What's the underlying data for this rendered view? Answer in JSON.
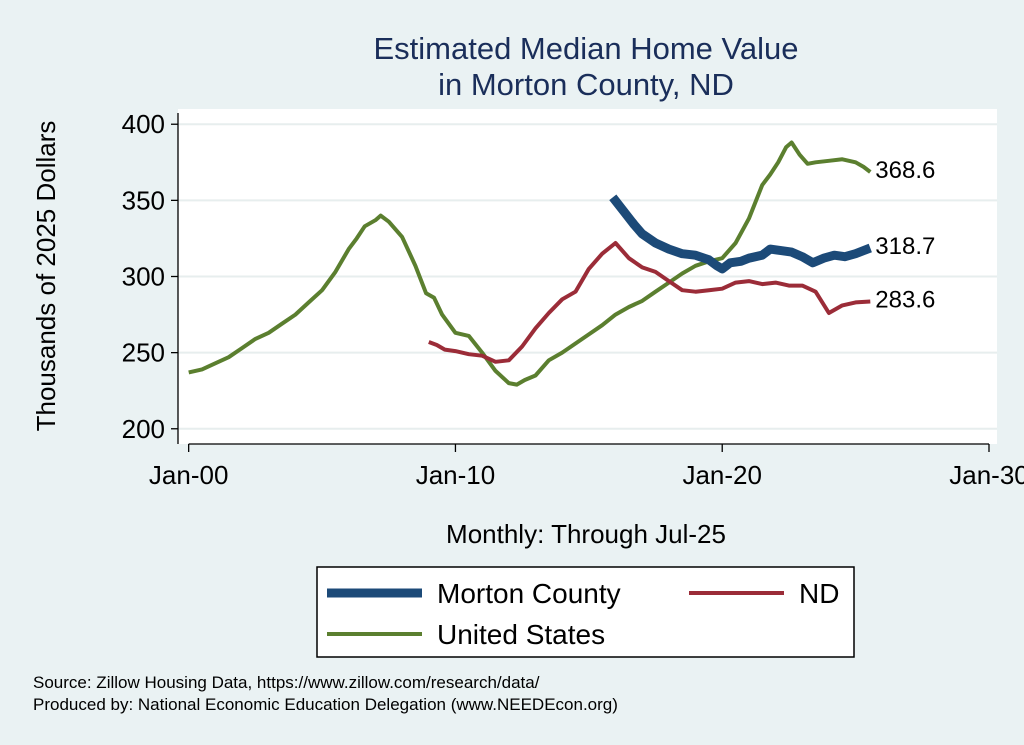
{
  "chart_data": {
    "type": "line",
    "title": [
      "Estimated Median Home Value",
      "in Morton County, ND"
    ],
    "ylabel": "Thousands of 2025 Dollars",
    "xlabel": "Monthly: Through Jul-25",
    "ylim": [
      190,
      410
    ],
    "yticks": [
      200,
      250,
      300,
      350,
      400
    ],
    "xlim": [
      1999.6,
      2030.3
    ],
    "xticks": [
      {
        "value": 2000,
        "label": "Jan-00"
      },
      {
        "value": 2010,
        "label": "Jan-10"
      },
      {
        "value": 2020,
        "label": "Jan-20"
      },
      {
        "value": 2030,
        "label": "Jan-30"
      }
    ],
    "grid": true,
    "series": [
      {
        "name": "United States",
        "color": "#5b7f2f",
        "width": 4,
        "end_label": "368.6",
        "points": [
          [
            2000.0,
            237
          ],
          [
            2000.5,
            239
          ],
          [
            2001.0,
            243
          ],
          [
            2001.5,
            247
          ],
          [
            2002.0,
            253
          ],
          [
            2002.5,
            259
          ],
          [
            2003.0,
            263
          ],
          [
            2003.5,
            269
          ],
          [
            2004.0,
            275
          ],
          [
            2004.5,
            283
          ],
          [
            2005.0,
            291
          ],
          [
            2005.5,
            303
          ],
          [
            2006.0,
            318
          ],
          [
            2006.3,
            325
          ],
          [
            2006.6,
            333
          ],
          [
            2007.0,
            337
          ],
          [
            2007.2,
            340
          ],
          [
            2007.5,
            336
          ],
          [
            2008.0,
            326
          ],
          [
            2008.5,
            307
          ],
          [
            2008.9,
            289
          ],
          [
            2009.2,
            286
          ],
          [
            2009.5,
            275
          ],
          [
            2010.0,
            263
          ],
          [
            2010.5,
            261
          ],
          [
            2011.0,
            250
          ],
          [
            2011.5,
            238
          ],
          [
            2012.0,
            230
          ],
          [
            2012.3,
            229
          ],
          [
            2012.6,
            232
          ],
          [
            2013.0,
            235
          ],
          [
            2013.5,
            245
          ],
          [
            2014.0,
            250
          ],
          [
            2014.5,
            256
          ],
          [
            2015.0,
            262
          ],
          [
            2015.5,
            268
          ],
          [
            2016.0,
            275
          ],
          [
            2016.5,
            280
          ],
          [
            2017.0,
            284
          ],
          [
            2017.5,
            290
          ],
          [
            2018.0,
            296
          ],
          [
            2018.5,
            302
          ],
          [
            2019.0,
            307
          ],
          [
            2019.5,
            310
          ],
          [
            2020.0,
            312
          ],
          [
            2020.5,
            322
          ],
          [
            2021.0,
            338
          ],
          [
            2021.5,
            360
          ],
          [
            2021.8,
            367
          ],
          [
            2022.1,
            375
          ],
          [
            2022.4,
            385
          ],
          [
            2022.6,
            388
          ],
          [
            2022.9,
            380
          ],
          [
            2023.2,
            374
          ],
          [
            2023.5,
            375
          ],
          [
            2024.0,
            376
          ],
          [
            2024.5,
            377
          ],
          [
            2025.0,
            375
          ],
          [
            2025.3,
            372
          ],
          [
            2025.55,
            368.6
          ]
        ]
      },
      {
        "name": "ND",
        "color": "#9b2c38",
        "width": 4,
        "end_label": "283.6",
        "points": [
          [
            2009.0,
            257
          ],
          [
            2009.3,
            255
          ],
          [
            2009.6,
            252
          ],
          [
            2010.0,
            251
          ],
          [
            2010.5,
            249
          ],
          [
            2011.0,
            248
          ],
          [
            2011.5,
            244
          ],
          [
            2012.0,
            245
          ],
          [
            2012.5,
            254
          ],
          [
            2013.0,
            266
          ],
          [
            2013.5,
            276
          ],
          [
            2014.0,
            285
          ],
          [
            2014.5,
            290
          ],
          [
            2015.0,
            305
          ],
          [
            2015.5,
            315
          ],
          [
            2016.0,
            322
          ],
          [
            2016.5,
            312
          ],
          [
            2017.0,
            306
          ],
          [
            2017.5,
            303
          ],
          [
            2018.0,
            297
          ],
          [
            2018.5,
            291
          ],
          [
            2019.0,
            290
          ],
          [
            2019.5,
            291
          ],
          [
            2020.0,
            292
          ],
          [
            2020.5,
            296
          ],
          [
            2021.0,
            297
          ],
          [
            2021.5,
            295
          ],
          [
            2022.0,
            296
          ],
          [
            2022.5,
            294
          ],
          [
            2023.0,
            294
          ],
          [
            2023.5,
            290
          ],
          [
            2024.0,
            276
          ],
          [
            2024.5,
            281
          ],
          [
            2025.0,
            283
          ],
          [
            2025.55,
            283.6
          ]
        ]
      },
      {
        "name": "Morton County",
        "color": "#1c4a78",
        "width": 9,
        "end_label": "318.7",
        "points": [
          [
            2015.9,
            352
          ],
          [
            2016.3,
            343
          ],
          [
            2016.7,
            334
          ],
          [
            2017.0,
            328
          ],
          [
            2017.5,
            322
          ],
          [
            2018.0,
            318
          ],
          [
            2018.5,
            315
          ],
          [
            2019.0,
            314
          ],
          [
            2019.5,
            311
          ],
          [
            2019.8,
            307
          ],
          [
            2020.0,
            305
          ],
          [
            2020.3,
            309
          ],
          [
            2020.7,
            310
          ],
          [
            2021.0,
            312
          ],
          [
            2021.5,
            314
          ],
          [
            2021.8,
            318
          ],
          [
            2022.2,
            317
          ],
          [
            2022.6,
            316
          ],
          [
            2023.0,
            313
          ],
          [
            2023.4,
            309
          ],
          [
            2023.8,
            312
          ],
          [
            2024.2,
            314
          ],
          [
            2024.6,
            313
          ],
          [
            2025.0,
            315
          ],
          [
            2025.55,
            318.7
          ]
        ]
      }
    ],
    "legend": {
      "placement": "bottom",
      "items": [
        "Morton County",
        "ND",
        "United States"
      ]
    }
  },
  "notes": {
    "source": "Source: Zillow Housing Data, https://www.zillow.com/research/data/",
    "produced": "Produced by: National Economic Education Delegation (www.NEEDEcon.org)"
  }
}
